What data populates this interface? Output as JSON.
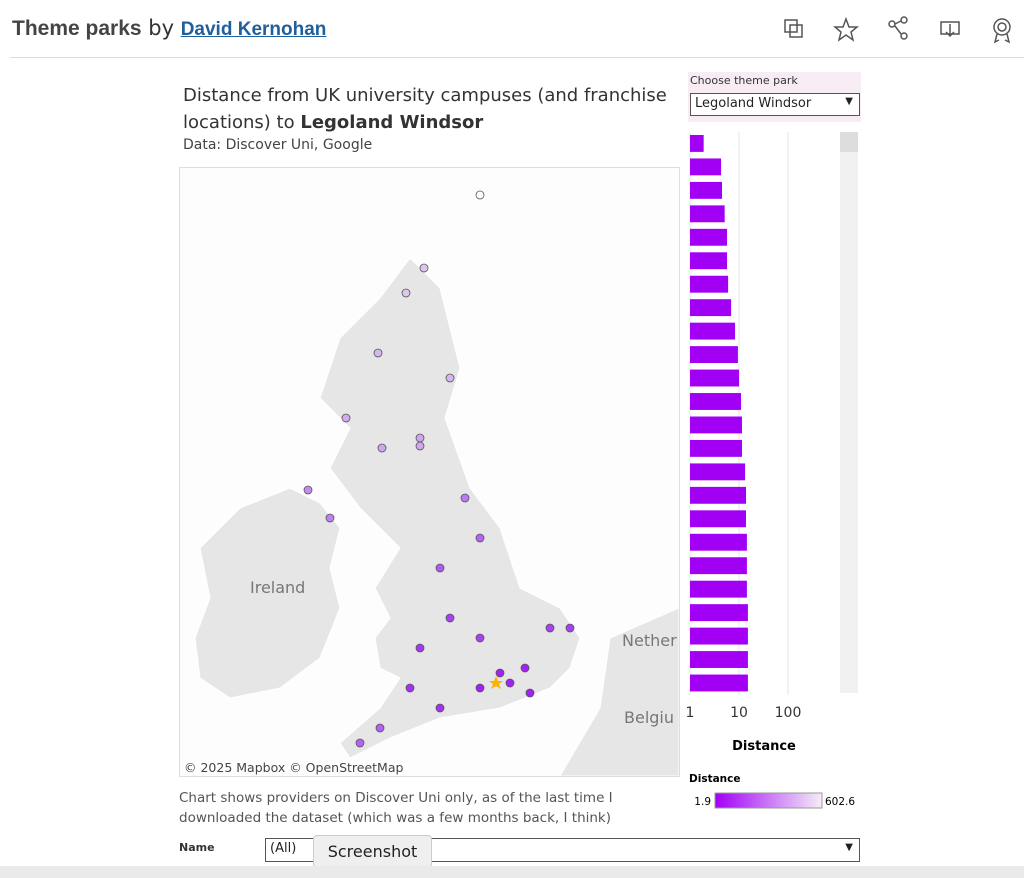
{
  "header": {
    "title": "Theme parks",
    "by": "by",
    "author": "David Kernohan"
  },
  "viz": {
    "title_prefix": "Distance from UK university campuses (and franchise locations) to",
    "title_park": "Legoland Windsor",
    "source": "Data: Discover Uni, Google",
    "map": {
      "labels": [
        "Ireland",
        "Nether",
        "Belgiu"
      ],
      "attribution": "© 2025 Mapbox © OpenStreetMap"
    },
    "note": "Chart shows providers on Discover Uni only, as of the last time I downloaded the dataset (which was a few months back, I think)",
    "filter": {
      "label": "Choose theme park",
      "value": "Legoland Windsor"
    },
    "name_filter": {
      "label": "Name",
      "value": "(All)"
    },
    "tooltip": "Screenshot"
  },
  "chart_data": {
    "type": "bar",
    "orientation": "horizontal",
    "x_label": "Distance",
    "xscale": "log",
    "xlim": [
      1,
      1000
    ],
    "xticks": [
      1,
      10,
      100
    ],
    "grid": true,
    "color": "#a100f5",
    "categories": [
      null,
      null,
      null,
      null,
      null,
      null,
      null,
      null,
      null,
      null,
      null,
      null,
      null,
      null,
      null,
      null,
      null,
      null,
      null,
      null,
      null,
      null,
      null,
      null
    ],
    "values": [
      1.9,
      4.3,
      4.5,
      5.1,
      5.7,
      5.7,
      6.0,
      6.9,
      8.3,
      9.5,
      10.0,
      11.0,
      11.5,
      11.5,
      13.3,
      13.9,
      13.9,
      14.5,
      14.5,
      14.5,
      15.2,
      15.2,
      15.2,
      15.2
    ],
    "color_legend": {
      "title": "Distance",
      "min": 1.9,
      "max": 602.6
    }
  }
}
